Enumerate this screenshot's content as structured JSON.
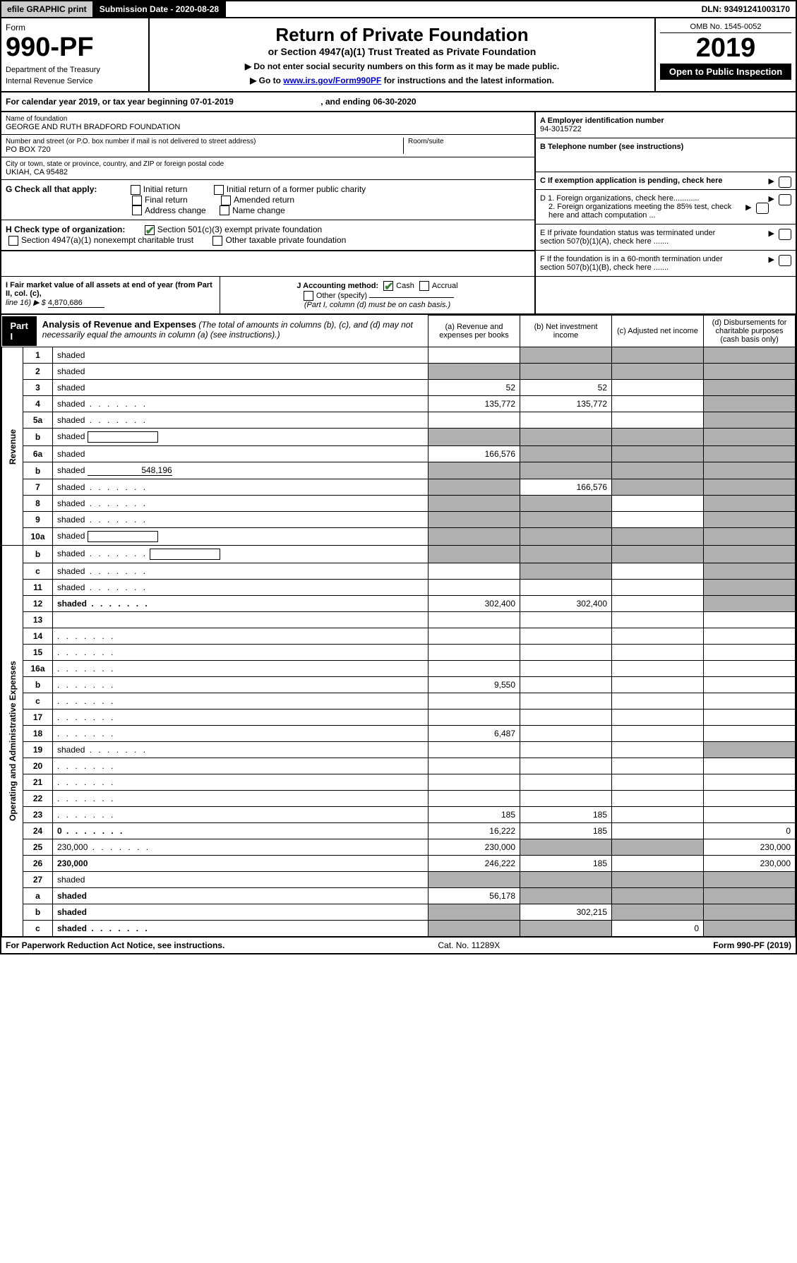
{
  "topbar": {
    "efile": "efile GRAPHIC print",
    "submission": "Submission Date - 2020-08-28",
    "dln": "DLN: 93491241003170"
  },
  "header": {
    "form_label": "Form",
    "form_number": "990-PF",
    "dept": "Department of the Treasury",
    "irs": "Internal Revenue Service",
    "title": "Return of Private Foundation",
    "subtitle": "or Section 4947(a)(1) Trust Treated as Private Foundation",
    "instr1": "▶ Do not enter social security numbers on this form as it may be made public.",
    "instr2_pre": "▶ Go to ",
    "instr2_link": "www.irs.gov/Form990PF",
    "instr2_post": " for instructions and the latest information.",
    "omb": "OMB No. 1545-0052",
    "year": "2019",
    "open_public": "Open to Public Inspection"
  },
  "calendar": {
    "prefix": "For calendar year 2019, or tax year beginning ",
    "begin": "07-01-2019",
    "mid": " , and ending ",
    "end": "06-30-2020"
  },
  "entity": {
    "name_label": "Name of foundation",
    "name": "GEORGE AND RUTH BRADFORD FOUNDATION",
    "addr_label": "Number and street (or P.O. box number if mail is not delivered to street address)",
    "addr": "PO BOX 720",
    "room_label": "Room/suite",
    "city_label": "City or town, state or province, country, and ZIP or foreign postal code",
    "city": "UKIAH, CA  95482",
    "ein_label": "A Employer identification number",
    "ein": "94-3015722",
    "phone_label": "B Telephone number (see instructions)",
    "exempt_label": "C If exemption application is pending, check here"
  },
  "sectionG": {
    "label": "G Check all that apply:",
    "opts": [
      "Initial return",
      "Initial return of a former public charity",
      "Final return",
      "Amended return",
      "Address change",
      "Name change"
    ]
  },
  "sectionH": {
    "label": "H Check type of organization:",
    "opt1": "Section 501(c)(3) exempt private foundation",
    "opt2": "Section 4947(a)(1) nonexempt charitable trust",
    "opt3": "Other taxable private foundation"
  },
  "sectionD": {
    "d1": "D 1. Foreign organizations, check here............",
    "d2": "2. Foreign organizations meeting the 85% test, check here and attach computation ...",
    "e": "E  If private foundation status was terminated under section 507(b)(1)(A), check here .......",
    "f": "F  If the foundation is in a 60-month termination under section 507(b)(1)(B), check here ......."
  },
  "sectionI": {
    "label": "I Fair market value of all assets at end of year (from Part II, col. (c),",
    "line16": "line 16) ▶ $  ",
    "value": "4,870,686"
  },
  "sectionJ": {
    "label": "J Accounting method:",
    "cash": "Cash",
    "accrual": "Accrual",
    "other": "Other (specify)",
    "note": "(Part I, column (d) must be on cash basis.)"
  },
  "part1": {
    "tab": "Part I",
    "title": "Analysis of Revenue and Expenses",
    "note": "(The total of amounts in columns (b), (c), and (d) may not necessarily equal the amounts in column (a) (see instructions).)",
    "col_a": "(a)   Revenue and expenses per books",
    "col_b": "(b)   Net investment income",
    "col_c": "(c)   Adjusted net income",
    "col_d": "(d)   Disbursements for charitable purposes (cash basis only)"
  },
  "revenue_label": "Revenue",
  "expense_label": "Operating and Administrative Expenses",
  "rows": [
    {
      "n": "1",
      "d": "shaded",
      "a": "",
      "b": "shaded",
      "c": "shaded"
    },
    {
      "n": "2",
      "d": "shaded",
      "a": "shaded",
      "b": "shaded",
      "c": "shaded",
      "dotted": true
    },
    {
      "n": "3",
      "d": "shaded",
      "a": "52",
      "b": "52",
      "c": ""
    },
    {
      "n": "4",
      "d": "shaded",
      "a": "135,772",
      "b": "135,772",
      "c": "",
      "dots": true
    },
    {
      "n": "5a",
      "d": "shaded",
      "a": "",
      "b": "",
      "c": "",
      "dots": true
    },
    {
      "n": "b",
      "d": "shaded",
      "a": "shaded",
      "b": "shaded",
      "c": "shaded",
      "inline": true
    },
    {
      "n": "6a",
      "d": "shaded",
      "a": "166,576",
      "b": "shaded",
      "c": "shaded"
    },
    {
      "n": "b",
      "d": "shaded",
      "a": "shaded",
      "b": "shaded",
      "c": "shaded",
      "val_inline": "548,196"
    },
    {
      "n": "7",
      "d": "shaded",
      "a": "shaded",
      "b": "166,576",
      "c": "shaded",
      "dots": true
    },
    {
      "n": "8",
      "d": "shaded",
      "a": "shaded",
      "b": "shaded",
      "c": "",
      "dots": true
    },
    {
      "n": "9",
      "d": "shaded",
      "a": "shaded",
      "b": "shaded",
      "c": "",
      "dots": true
    },
    {
      "n": "10a",
      "d": "shaded",
      "a": "shaded",
      "b": "shaded",
      "c": "shaded",
      "inline": true
    },
    {
      "n": "b",
      "d": "shaded",
      "a": "shaded",
      "b": "shaded",
      "c": "shaded",
      "inline": true,
      "dots": true
    },
    {
      "n": "c",
      "d": "shaded",
      "a": "",
      "b": "shaded",
      "c": "",
      "dots": true
    },
    {
      "n": "11",
      "d": "shaded",
      "a": "",
      "b": "",
      "c": "",
      "dots": true
    },
    {
      "n": "12",
      "d": "shaded",
      "a": "302,400",
      "b": "302,400",
      "c": "",
      "bold": true,
      "dots": true
    },
    {
      "n": "13",
      "d": "",
      "a": "",
      "b": "",
      "c": ""
    },
    {
      "n": "14",
      "d": "",
      "a": "",
      "b": "",
      "c": "",
      "dots": true
    },
    {
      "n": "15",
      "d": "",
      "a": "",
      "b": "",
      "c": "",
      "dots": true
    },
    {
      "n": "16a",
      "d": "",
      "a": "",
      "b": "",
      "c": "",
      "dots": true
    },
    {
      "n": "b",
      "d": "",
      "a": "9,550",
      "b": "",
      "c": "",
      "dots": true
    },
    {
      "n": "c",
      "d": "",
      "a": "",
      "b": "",
      "c": "",
      "dots": true
    },
    {
      "n": "17",
      "d": "",
      "a": "",
      "b": "",
      "c": "",
      "dots": true
    },
    {
      "n": "18",
      "d": "",
      "a": "6,487",
      "b": "",
      "c": "",
      "dots": true
    },
    {
      "n": "19",
      "d": "shaded",
      "a": "",
      "b": "",
      "c": "",
      "dots": true
    },
    {
      "n": "20",
      "d": "",
      "a": "",
      "b": "",
      "c": "",
      "dots": true
    },
    {
      "n": "21",
      "d": "",
      "a": "",
      "b": "",
      "c": "",
      "dots": true
    },
    {
      "n": "22",
      "d": "",
      "a": "",
      "b": "",
      "c": "",
      "dots": true
    },
    {
      "n": "23",
      "d": "",
      "a": "185",
      "b": "185",
      "c": "",
      "dots": true
    },
    {
      "n": "24",
      "d": "0",
      "a": "16,222",
      "b": "185",
      "c": "",
      "bold": true,
      "dots": true
    },
    {
      "n": "25",
      "d": "230,000",
      "a": "230,000",
      "b": "shaded",
      "c": "shaded",
      "dots": true
    },
    {
      "n": "26",
      "d": "230,000",
      "a": "246,222",
      "b": "185",
      "c": "",
      "bold": true
    },
    {
      "n": "27",
      "d": "shaded",
      "a": "shaded",
      "b": "shaded",
      "c": "shaded"
    },
    {
      "n": "a",
      "d": "shaded",
      "a": "56,178",
      "b": "shaded",
      "c": "shaded",
      "bold": true
    },
    {
      "n": "b",
      "d": "shaded",
      "a": "shaded",
      "b": "302,215",
      "c": "shaded",
      "bold": true
    },
    {
      "n": "c",
      "d": "shaded",
      "a": "shaded",
      "b": "shaded",
      "c": "0",
      "bold": true,
      "dots": true
    }
  ],
  "footer": {
    "left": "For Paperwork Reduction Act Notice, see instructions.",
    "mid": "Cat. No. 11289X",
    "right": "Form 990-PF (2019)"
  }
}
